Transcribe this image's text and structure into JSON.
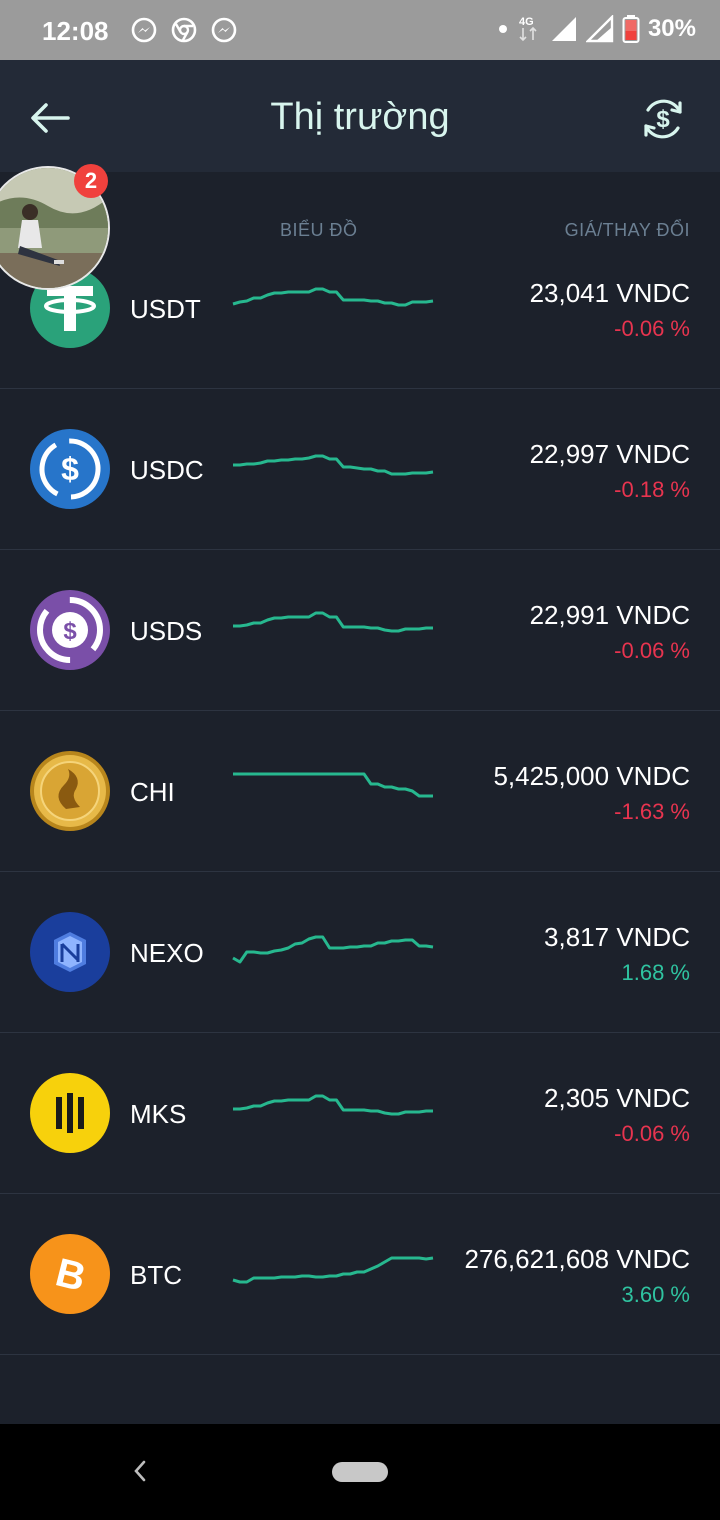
{
  "status_bar": {
    "time": "12:08",
    "network": "4G",
    "battery": "30%",
    "icons": [
      "messenger-icon",
      "chrome-icon",
      "messenger-icon"
    ]
  },
  "header": {
    "title": "Thị trường",
    "back_icon": "arrow-left-icon",
    "action_icon": "currency-exchange-icon"
  },
  "columns": {
    "chart": "BIỂU ĐỒ",
    "price": "GIÁ/THAY ĐỔI"
  },
  "avatar": {
    "badge": "2"
  },
  "colors": {
    "background": "#1c212b",
    "header": "#232a37",
    "spark": "#27b88f",
    "negative": "#e8344f",
    "positive": "#2fc3a0"
  },
  "coins": [
    {
      "symbol": "USDT",
      "price": "23,041 VNDC",
      "change": "-0.06 %",
      "trend": "neg",
      "icon": "tether-icon",
      "spark": [
        32,
        34,
        35,
        38,
        38,
        41,
        43,
        43,
        44,
        44,
        44,
        44,
        47,
        47,
        44,
        44,
        36,
        36,
        36,
        36,
        35,
        35,
        33,
        33,
        31,
        31,
        34,
        34,
        34,
        35
      ]
    },
    {
      "symbol": "USDC",
      "price": "22,997 VNDC",
      "change": "-0.18 %",
      "trend": "neg",
      "icon": "usdc-icon",
      "spark": [
        32,
        32,
        33,
        33,
        34,
        36,
        36,
        37,
        37,
        38,
        38,
        39,
        41,
        41,
        38,
        38,
        30,
        30,
        29,
        28,
        28,
        26,
        26,
        23,
        23,
        23,
        24,
        24,
        24,
        25
      ]
    },
    {
      "symbol": "USDS",
      "price": "22,991 VNDC",
      "change": "-0.06 %",
      "trend": "neg",
      "icon": "usds-icon",
      "spark": [
        32,
        32,
        33,
        35,
        35,
        38,
        40,
        40,
        41,
        41,
        41,
        41,
        45,
        45,
        41,
        41,
        31,
        31,
        31,
        31,
        30,
        30,
        28,
        27,
        27,
        29,
        29,
        29,
        30,
        30
      ]
    },
    {
      "symbol": "CHI",
      "price": "5,425,000 VNDC",
      "change": "-1.63 %",
      "trend": "neg",
      "icon": "chi-coin-icon",
      "spark": [
        45,
        45,
        45,
        45,
        45,
        45,
        45,
        45,
        45,
        45,
        45,
        45,
        45,
        45,
        45,
        45,
        45,
        45,
        45,
        45,
        35,
        35,
        32,
        32,
        30,
        30,
        28,
        23,
        23,
        23
      ]
    },
    {
      "symbol": "NEXO",
      "price": "3,817 VNDC",
      "change": "1.68 %",
      "trend": "pos",
      "icon": "nexo-icon",
      "spark": [
        22,
        18,
        28,
        28,
        27,
        27,
        29,
        30,
        32,
        36,
        37,
        41,
        43,
        43,
        32,
        32,
        32,
        33,
        33,
        34,
        34,
        37,
        37,
        39,
        39,
        40,
        40,
        34,
        34,
        33
      ]
    },
    {
      "symbol": "MKS",
      "price": "2,305 VNDC",
      "change": "-0.06 %",
      "trend": "neg",
      "icon": "mks-icon",
      "spark": [
        32,
        32,
        33,
        35,
        35,
        38,
        40,
        40,
        41,
        41,
        41,
        41,
        45,
        45,
        41,
        41,
        31,
        31,
        31,
        31,
        30,
        30,
        28,
        27,
        27,
        29,
        29,
        29,
        30,
        30
      ]
    },
    {
      "symbol": "BTC",
      "price": "276,621,608 VNDC",
      "change": "3.60 %",
      "trend": "pos",
      "icon": "bitcoin-icon",
      "spark": [
        22,
        20,
        20,
        24,
        24,
        24,
        24,
        25,
        25,
        25,
        26,
        26,
        25,
        25,
        26,
        26,
        28,
        28,
        30,
        30,
        33,
        36,
        40,
        44,
        44,
        44,
        44,
        44,
        43,
        44
      ]
    }
  ]
}
